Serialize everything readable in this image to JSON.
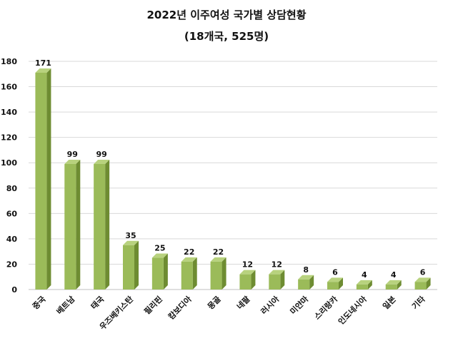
{
  "chart_data": {
    "type": "bar",
    "title": "2022년 이주여성 국가별 상담현황",
    "subtitle": "(18개국, 525명)",
    "categories": [
      "중국",
      "베트남",
      "태국",
      "우즈베키스탄",
      "필리핀",
      "캄보디아",
      "몽골",
      "네팔",
      "러시아",
      "미얀마",
      "스리랑카",
      "인도네시아",
      "일본",
      "기타"
    ],
    "values": [
      171,
      99,
      99,
      35,
      25,
      22,
      22,
      12,
      12,
      8,
      6,
      4,
      4,
      6
    ],
    "ylim": [
      0,
      180
    ],
    "yticks": [
      0,
      20,
      40,
      60,
      80,
      100,
      120,
      140,
      160,
      180
    ],
    "grid": true,
    "bar_color": "#9BBB59",
    "bar_side_color": "#6E8C32",
    "bar_top_color": "#B8D27E",
    "grid_color": "#D9D9D9"
  }
}
